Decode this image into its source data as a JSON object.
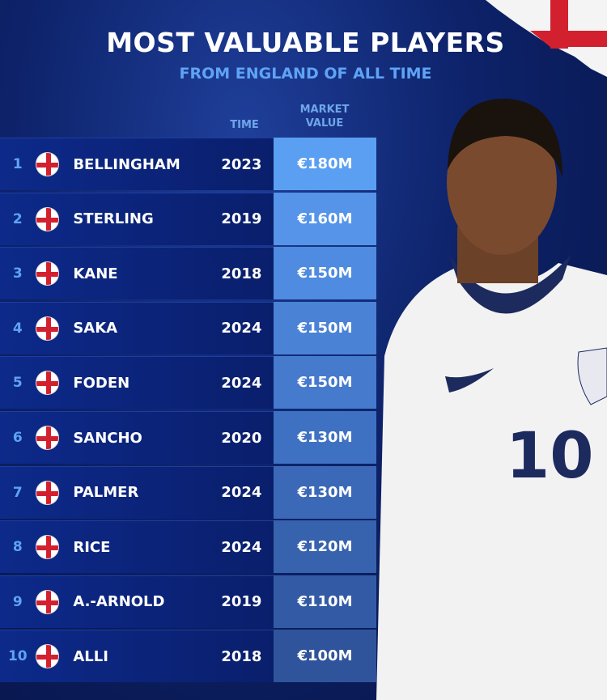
{
  "title": "MOST VALUABLE PLAYERS",
  "subtitle": "FROM ENGLAND OF ALL TIME",
  "columns": {
    "time": "TIME",
    "market_value_1": "MARKET",
    "market_value_2": "VALUE"
  },
  "player_shirt_number": "10",
  "colors": {
    "flag_red": "#d3202f",
    "accent": "#5fa3f5"
  },
  "rows": [
    {
      "rank": "1",
      "name": "BELLINGHAM",
      "year": "2023",
      "value": "€180M"
    },
    {
      "rank": "2",
      "name": "STERLING",
      "year": "2019",
      "value": "€160M"
    },
    {
      "rank": "3",
      "name": "KANE",
      "year": "2018",
      "value": "€150M"
    },
    {
      "rank": "4",
      "name": "SAKA",
      "year": "2024",
      "value": "€150M"
    },
    {
      "rank": "5",
      "name": "FODEN",
      "year": "2024",
      "value": "€150M"
    },
    {
      "rank": "6",
      "name": "SANCHO",
      "year": "2020",
      "value": "€130M"
    },
    {
      "rank": "7",
      "name": "PALMER",
      "year": "2024",
      "value": "€130M"
    },
    {
      "rank": "8",
      "name": "RICE",
      "year": "2024",
      "value": "€120M"
    },
    {
      "rank": "9",
      "name": "A.-ARNOLD",
      "year": "2019",
      "value": "€110M"
    },
    {
      "rank": "10",
      "name": "ALLI",
      "year": "2018",
      "value": "€100M"
    }
  ]
}
